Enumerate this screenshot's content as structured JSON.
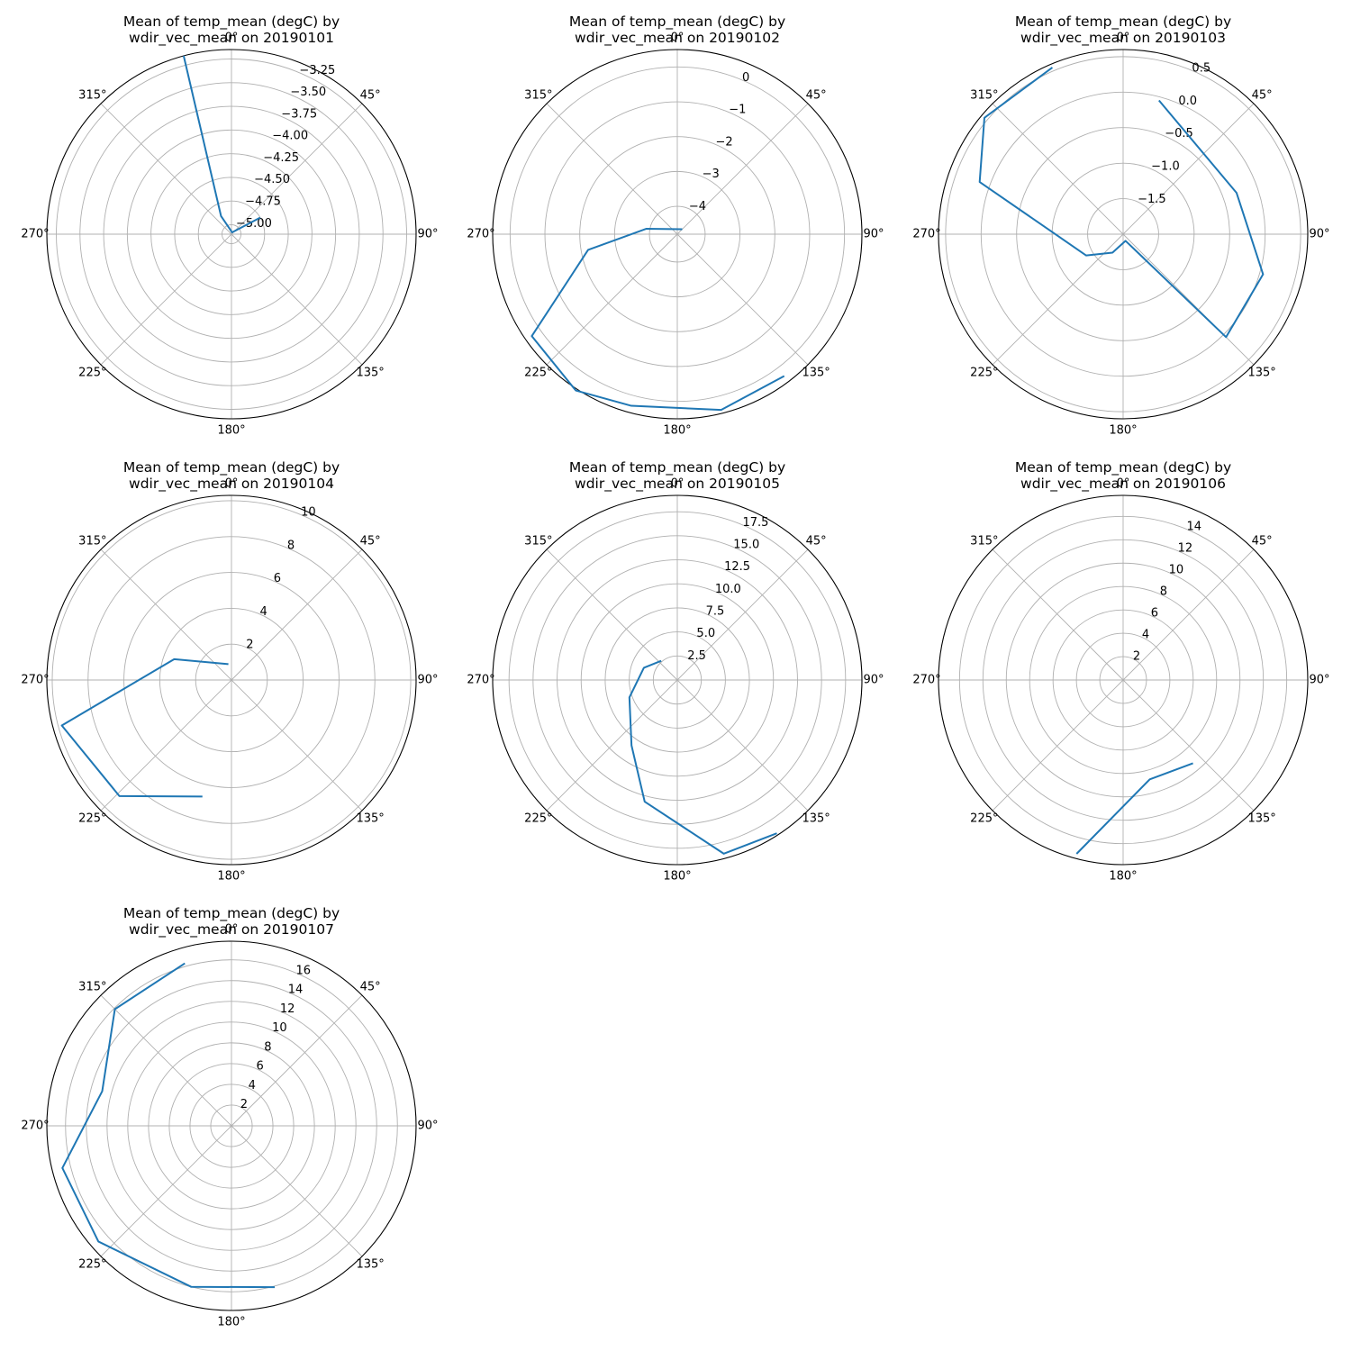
{
  "colors": {
    "line": "#1f77b4",
    "grid": "#b0b0b0",
    "spine": "#000000",
    "background": "#ffffff"
  },
  "chart_data": [
    {
      "type": "line",
      "projection": "polar",
      "title": "Mean of temp_mean (degC) by\nwdir_vec_mean on 20190101",
      "angle_ticks": [
        "0°",
        "45°",
        "90°",
        "135°",
        "180°",
        "225°",
        "270°",
        "315°"
      ],
      "r_ticks": [
        -5.0,
        -4.75,
        -4.5,
        -4.25,
        -4.0,
        -3.75,
        -3.5,
        -3.25
      ],
      "r_tick_labels": [
        "−5.00",
        "−4.75",
        "−4.50",
        "−4.25",
        "−4.00",
        "−3.75",
        "−3.50",
        "−3.25"
      ],
      "rlim": [
        -5.1,
        -3.15
      ],
      "grid": true,
      "series": [
        {
          "theta_deg": [
            60,
            20,
            330,
            345
          ],
          "values": [
            -4.75,
            -5.08,
            -4.88,
            -3.15
          ]
        }
      ]
    },
    {
      "type": "line",
      "projection": "polar",
      "title": "Mean of temp_mean (degC) by\nwdir_vec_mean on 20190102",
      "angle_ticks": [
        "0°",
        "45°",
        "90°",
        "135°",
        "180°",
        "225°",
        "270°",
        "315°"
      ],
      "r_ticks": [
        -4,
        -3,
        -2,
        -1,
        0
      ],
      "r_tick_labels": [
        "−4",
        "−3",
        "−2",
        "−1",
        "0"
      ],
      "rlim": [
        -4.8,
        0.5
      ],
      "grid": true,
      "series": [
        {
          "theta_deg": [
            45,
            280,
            260,
            235,
            213,
            195,
            166,
            143
          ],
          "values": [
            -4.6,
            -3.9,
            -2.2,
            0.3,
            0.55,
            0.3,
            0.4,
            0.3
          ]
        }
      ]
    },
    {
      "type": "line",
      "projection": "polar",
      "title": "Mean of temp_mean (degC) by\nwdir_vec_mean on 20190103",
      "angle_ticks": [
        "0°",
        "45°",
        "90°",
        "135°",
        "180°",
        "225°",
        "270°",
        "315°"
      ],
      "r_ticks": [
        -1.5,
        -1.0,
        -0.5,
        0.0,
        0.5
      ],
      "r_tick_labels": [
        "−1.5",
        "−1.0",
        "−0.5",
        "0.0",
        "0.5"
      ],
      "rlim": [
        -2.0,
        0.6
      ],
      "grid": true,
      "series": [
        {
          "theta_deg": [
            15,
            70,
            106,
            135,
            160,
            210,
            240,
            290,
            310,
            337
          ],
          "values": [
            -0.05,
            -0.3,
            0.05,
            0.05,
            -1.9,
            -1.7,
            -1.4,
            0.15,
            0.55,
            0.55
          ]
        }
      ]
    },
    {
      "type": "line",
      "projection": "polar",
      "title": "Mean of temp_mean (degC) by\nwdir_vec_mean on 20190104",
      "angle_ticks": [
        "0°",
        "45°",
        "90°",
        "135°",
        "180°",
        "225°",
        "270°",
        "315°"
      ],
      "r_ticks": [
        2,
        4,
        6,
        8,
        10
      ],
      "r_tick_labels": [
        "2",
        "4",
        "6",
        "8",
        "10"
      ],
      "rlim": [
        0,
        10.3
      ],
      "grid": true,
      "series": [
        {
          "theta_deg": [
            349,
            290,
            255,
            224,
            194
          ],
          "values": [
            0.9,
            3.4,
            9.8,
            9.0,
            6.7
          ]
        }
      ]
    },
    {
      "type": "line",
      "projection": "polar",
      "title": "Mean of temp_mean (degC) by\nwdir_vec_mean on 20190105",
      "angle_ticks": [
        "0°",
        "45°",
        "90°",
        "135°",
        "180°",
        "225°",
        "270°",
        "315°"
      ],
      "r_ticks": [
        2.5,
        5.0,
        7.5,
        10.0,
        12.5,
        15.0,
        17.5
      ],
      "r_tick_labels": [
        "2.5",
        "5.0",
        "7.5",
        "10.0",
        "12.5",
        "15.0",
        "17.5"
      ],
      "rlim": [
        0,
        19.2
      ],
      "grid": true,
      "series": [
        {
          "theta_deg": [
            320,
            290,
            250,
            215,
            195,
            165,
            147
          ],
          "values": [
            2.6,
            3.7,
            5.3,
            8.3,
            13.1,
            18.7,
            19.0
          ]
        }
      ]
    },
    {
      "type": "line",
      "projection": "polar",
      "title": "Mean of temp_mean (degC) by\nwdir_vec_mean on 20190106",
      "angle_ticks": [
        "0°",
        "45°",
        "90°",
        "135°",
        "180°",
        "225°",
        "270°",
        "315°"
      ],
      "r_ticks": [
        2,
        4,
        6,
        8,
        10,
        12,
        14
      ],
      "r_tick_labels": [
        "2",
        "4",
        "6",
        "8",
        "10",
        "12",
        "14"
      ],
      "rlim": [
        0,
        15.8
      ],
      "grid": true,
      "series": [
        {
          "theta_deg": [
            140,
            165,
            195
          ],
          "values": [
            9.3,
            8.8,
            15.4
          ]
        }
      ]
    },
    {
      "type": "line",
      "projection": "polar",
      "title": "Mean of temp_mean (degC) by\nwdir_vec_mean on 20190107",
      "angle_ticks": [
        "0°",
        "45°",
        "90°",
        "135°",
        "180°",
        "225°",
        "270°",
        "315°"
      ],
      "r_ticks": [
        2,
        4,
        6,
        8,
        10,
        12,
        14,
        16
      ],
      "r_tick_labels": [
        "2",
        "4",
        "6",
        "8",
        "10",
        "12",
        "14",
        "16"
      ],
      "rlim": [
        0,
        17.8
      ],
      "grid": true,
      "series": [
        {
          "theta_deg": [
            165,
            194,
            229,
            256,
            285,
            315,
            344
          ],
          "values": [
            16.1,
            16.0,
            17.0,
            16.8,
            12.9,
            15.9,
            16.3
          ]
        }
      ]
    }
  ]
}
